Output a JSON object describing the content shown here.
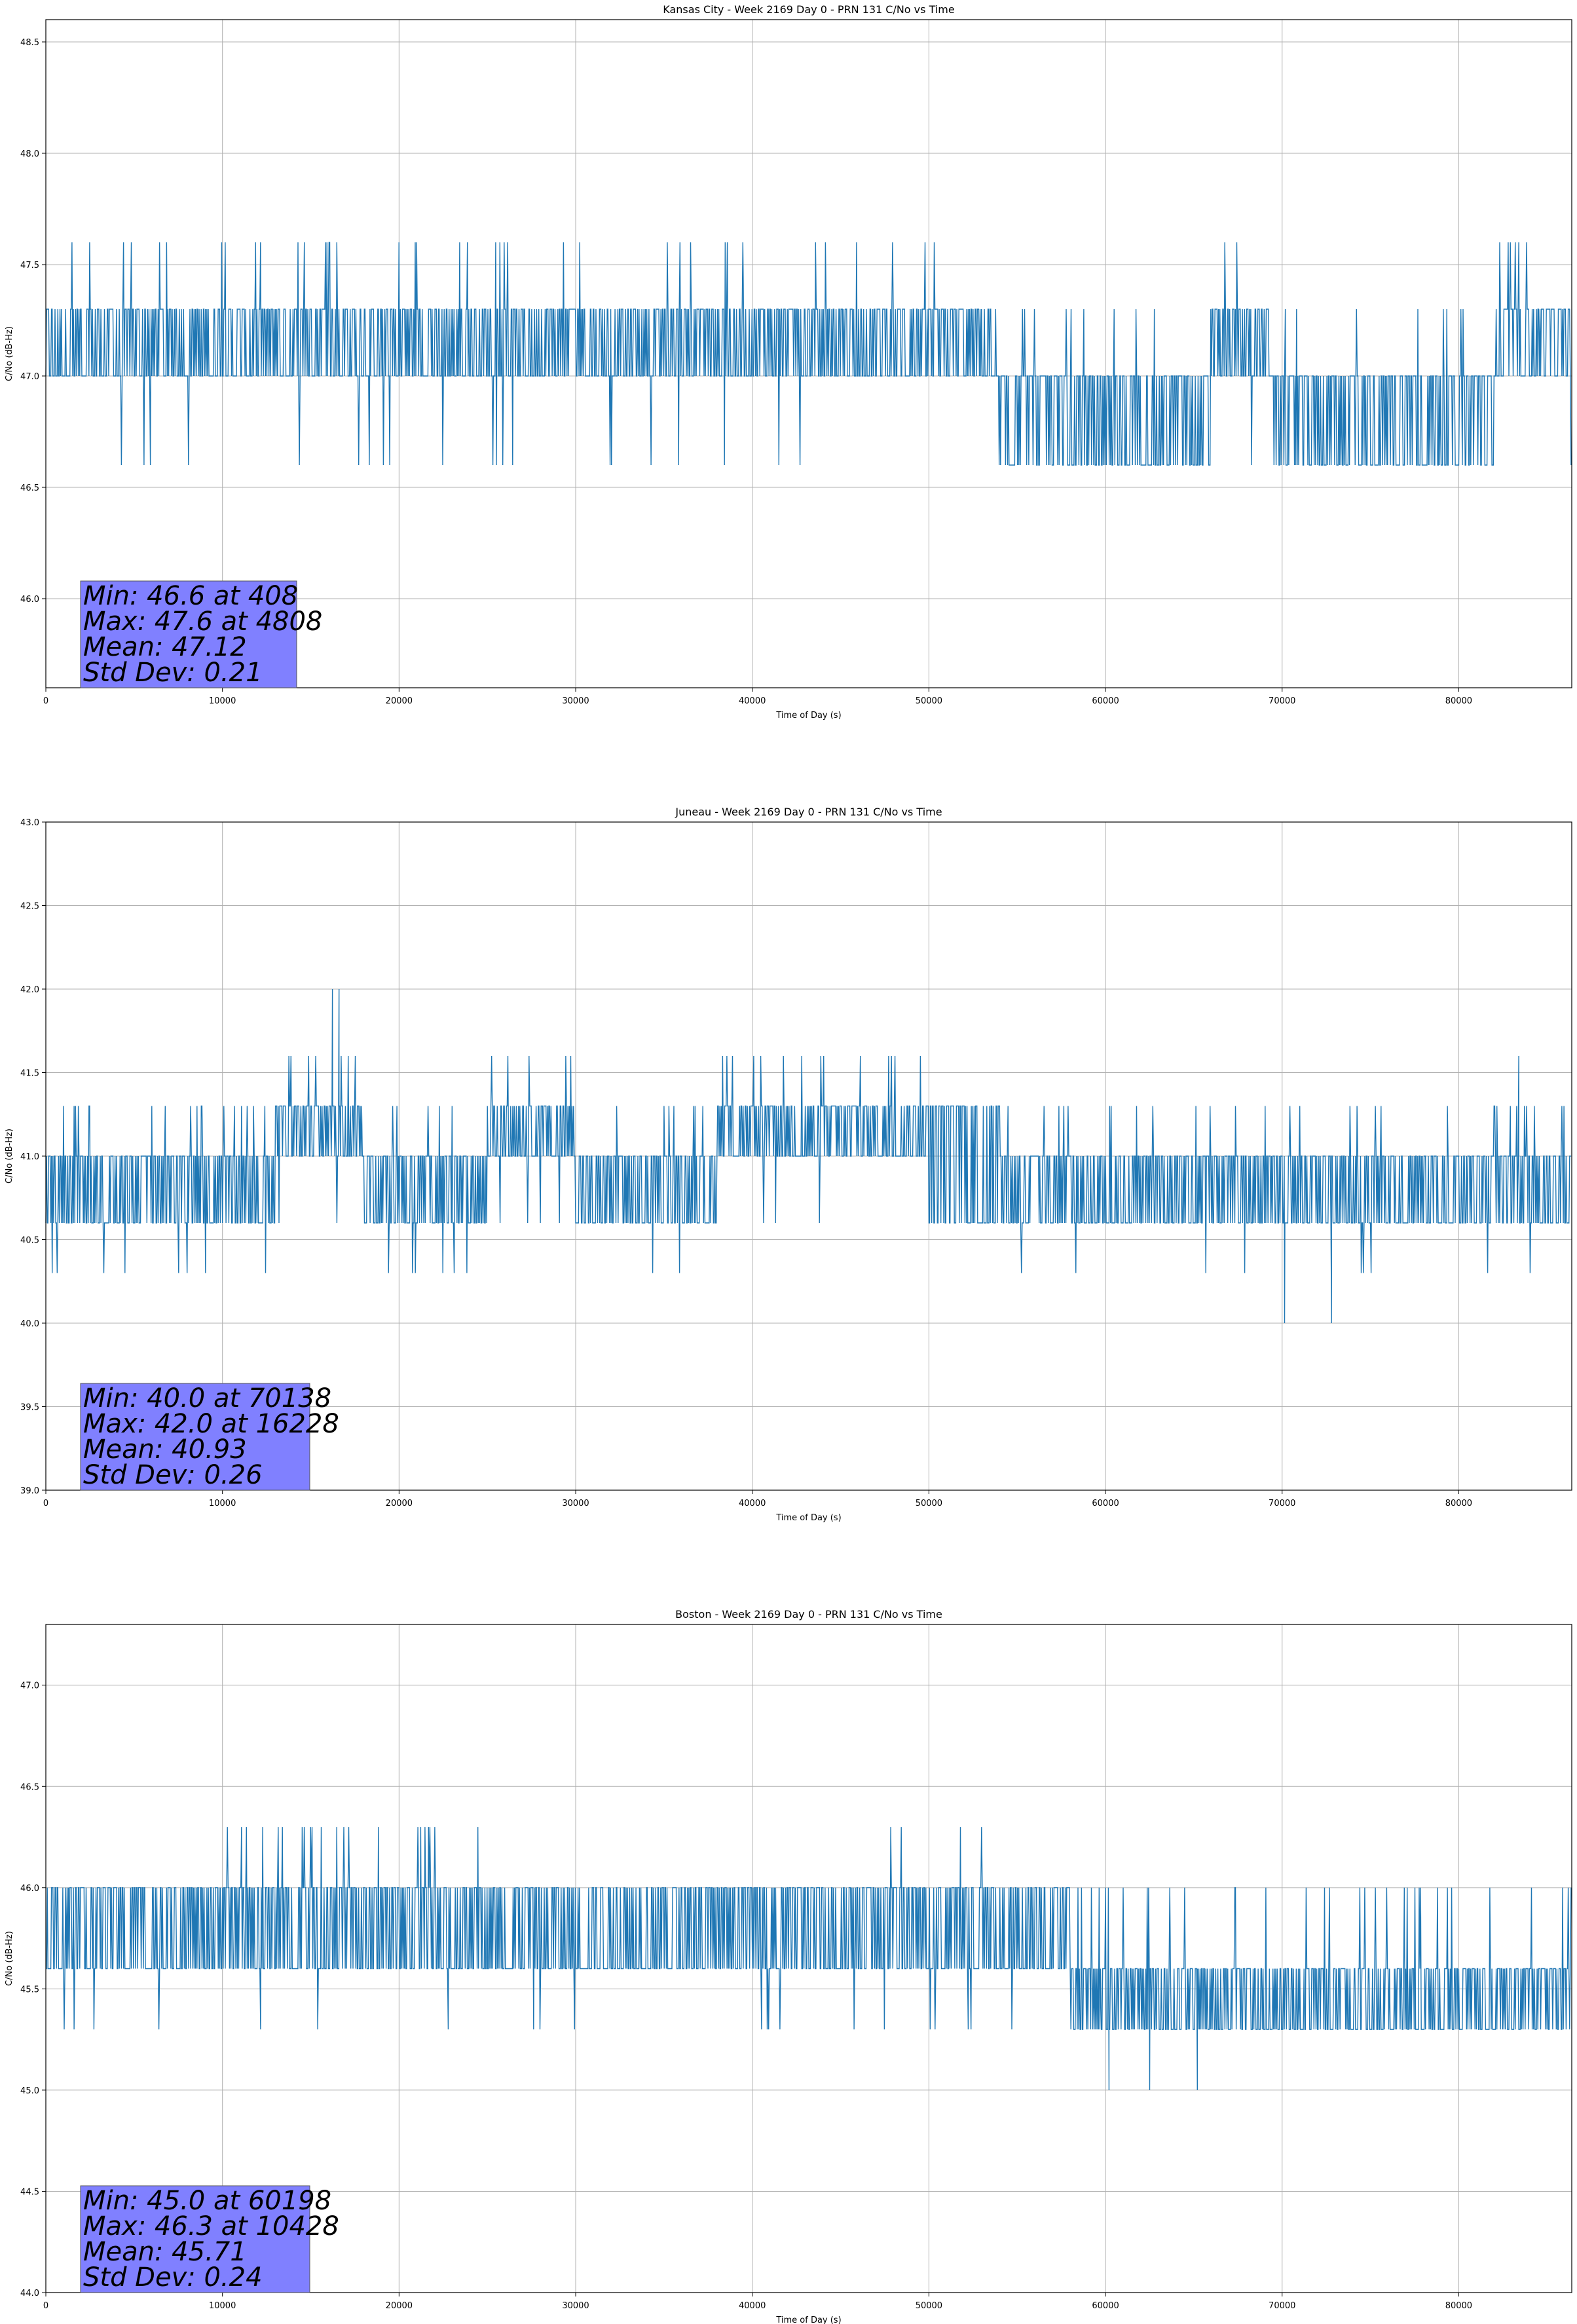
{
  "figure": {
    "background": "#ffffff",
    "series_color": "#1f77b4",
    "stats_box_color": "#8080ff"
  },
  "chart_data": [
    {
      "type": "line",
      "title": "Kansas City - Week 2169 Day 0 - PRN 131 C/No vs Time",
      "xlabel": "Time of Day (s)",
      "ylabel": "C/No (dB-Hz)",
      "xlim": [
        0,
        86400
      ],
      "ylim": [
        45.6,
        48.6
      ],
      "xticks": [
        0,
        10000,
        20000,
        30000,
        40000,
        50000,
        60000,
        70000,
        80000
      ],
      "xtick_labels": [
        "0",
        "10000",
        "20000",
        "30000",
        "40000",
        "50000",
        "60000",
        "70000",
        "80000"
      ],
      "yticks": [
        46.0,
        46.5,
        47.0,
        47.5,
        48.0,
        48.5
      ],
      "ytick_labels": [
        "46.0",
        "46.5",
        "47.0",
        "47.5",
        "48.0",
        "48.5"
      ],
      "grid": true,
      "stats": {
        "min": "Min: 46.6 at 408",
        "max": "Max: 47.6 at 4808",
        "mean": "Mean: 47.12",
        "std": "Std Dev: 0.21"
      },
      "segments": [
        {
          "x": [
            0,
            53500
          ],
          "levels": [
            47.0,
            47.3
          ],
          "low": 46.6,
          "high": 47.6
        },
        {
          "x": [
            53500,
            66000
          ],
          "levels": [
            46.6,
            47.0
          ],
          "low": 46.6,
          "high": 47.3
        },
        {
          "x": [
            66000,
            69500
          ],
          "levels": [
            47.0,
            47.3
          ],
          "low": 46.6,
          "high": 47.6
        },
        {
          "x": [
            69500,
            82000
          ],
          "levels": [
            46.6,
            47.0
          ],
          "low": 46.6,
          "high": 47.3
        },
        {
          "x": [
            82000,
            86400
          ],
          "levels": [
            47.0,
            47.3
          ],
          "low": 46.6,
          "high": 47.6
        }
      ]
    },
    {
      "type": "line",
      "title": "Juneau - Week 2169 Day 0 - PRN 131 C/No vs Time",
      "xlabel": "Time of Day (s)",
      "ylabel": "C/No (dB-Hz)",
      "xlim": [
        0,
        86400
      ],
      "ylim": [
        39.0,
        43.0
      ],
      "xticks": [
        0,
        10000,
        20000,
        30000,
        40000,
        50000,
        60000,
        70000,
        80000
      ],
      "xtick_labels": [
        "0",
        "10000",
        "20000",
        "30000",
        "40000",
        "50000",
        "60000",
        "70000",
        "80000"
      ],
      "yticks": [
        39.0,
        39.5,
        40.0,
        40.5,
        41.0,
        41.5,
        42.0,
        42.5,
        43.0
      ],
      "ytick_labels": [
        "39.0",
        "39.5",
        "40.0",
        "40.5",
        "41.0",
        "41.5",
        "42.0",
        "42.5",
        "43.0"
      ],
      "grid": true,
      "stats": {
        "min": "Min: 40.0 at 70138",
        "max": "Max: 42.0 at 16228",
        "mean": "Mean: 40.93",
        "std": "Std Dev: 0.26"
      },
      "segments": [
        {
          "x": [
            0,
            13000
          ],
          "levels": [
            40.6,
            41.0
          ],
          "low": 40.3,
          "high": 41.3
        },
        {
          "x": [
            13000,
            18000
          ],
          "levels": [
            41.0,
            41.3
          ],
          "low": 40.6,
          "high": 41.6
        },
        {
          "x": [
            18000,
            25000
          ],
          "levels": [
            40.6,
            41.0
          ],
          "low": 40.3,
          "high": 41.3
        },
        {
          "x": [
            25000,
            30000
          ],
          "levels": [
            41.0,
            41.3
          ],
          "low": 40.6,
          "high": 41.6
        },
        {
          "x": [
            30000,
            38000
          ],
          "levels": [
            40.6,
            41.0
          ],
          "low": 40.3,
          "high": 41.3
        },
        {
          "x": [
            38000,
            50000
          ],
          "levels": [
            41.0,
            41.3
          ],
          "low": 40.6,
          "high": 41.6
        },
        {
          "x": [
            50000,
            54000
          ],
          "levels": [
            40.6,
            41.3
          ],
          "low": 40.6,
          "high": 41.3
        },
        {
          "x": [
            54000,
            86400
          ],
          "levels": [
            40.6,
            41.0
          ],
          "low": 40.3,
          "high": 41.3
        }
      ],
      "spikes": [
        {
          "x": 16228,
          "y": 42.0
        },
        {
          "x": 16600,
          "y": 42.0
        },
        {
          "x": 70138,
          "y": 40.0
        },
        {
          "x": 72800,
          "y": 40.0
        },
        {
          "x": 83400,
          "y": 41.6
        }
      ]
    },
    {
      "type": "line",
      "title": "Boston - Week 2169 Day 0 - PRN 131 C/No vs Time",
      "xlabel": "Time of Day (s)",
      "ylabel": "C/No (dB-Hz)",
      "xlim": [
        0,
        86400
      ],
      "ylim": [
        44.0,
        47.3
      ],
      "xticks": [
        0,
        10000,
        20000,
        30000,
        40000,
        50000,
        60000,
        70000,
        80000
      ],
      "xtick_labels": [
        "0",
        "10000",
        "20000",
        "30000",
        "40000",
        "50000",
        "60000",
        "70000",
        "80000"
      ],
      "yticks": [
        44.0,
        44.5,
        45.0,
        45.5,
        46.0,
        46.5,
        47.0
      ],
      "ytick_labels": [
        "44.0",
        "44.5",
        "45.0",
        "45.5",
        "46.0",
        "46.5",
        "47.0"
      ],
      "grid": true,
      "stats": {
        "min": "Min: 45.0 at 60198",
        "max": "Max: 46.3 at 10428",
        "mean": "Mean: 45.71",
        "std": "Std Dev: 0.24"
      },
      "segments": [
        {
          "x": [
            0,
            10000
          ],
          "levels": [
            45.6,
            46.0
          ],
          "low": 45.3,
          "high": 46.0
        },
        {
          "x": [
            10000,
            25500
          ],
          "levels": [
            45.6,
            46.0
          ],
          "low": 45.3,
          "high": 46.3
        },
        {
          "x": [
            25500,
            47000
          ],
          "levels": [
            45.6,
            46.0
          ],
          "low": 45.3,
          "high": 46.0
        },
        {
          "x": [
            47000,
            53500
          ],
          "levels": [
            45.6,
            46.0
          ],
          "low": 45.3,
          "high": 46.3
        },
        {
          "x": [
            53500,
            58000
          ],
          "levels": [
            45.6,
            46.0
          ],
          "low": 45.3,
          "high": 46.0
        },
        {
          "x": [
            58000,
            86400
          ],
          "levels": [
            45.3,
            45.6
          ],
          "low": 45.3,
          "high": 46.0
        }
      ],
      "spikes": [
        {
          "x": 60198,
          "y": 45.0
        },
        {
          "x": 62500,
          "y": 45.0
        },
        {
          "x": 65200,
          "y": 45.0
        }
      ]
    }
  ]
}
